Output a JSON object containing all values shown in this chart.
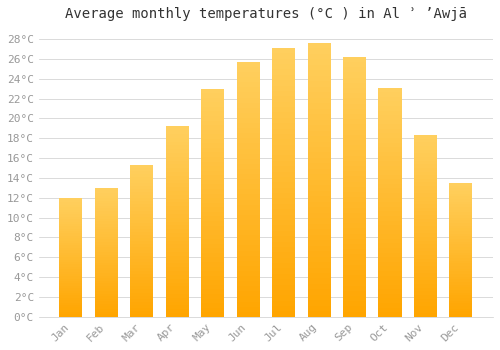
{
  "title": "Average monthly temperatures (°C ) in Al ʾ ʼAwjā",
  "months": [
    "Jan",
    "Feb",
    "Mar",
    "Apr",
    "May",
    "Jun",
    "Jul",
    "Aug",
    "Sep",
    "Oct",
    "Nov",
    "Dec"
  ],
  "values": [
    12.0,
    13.0,
    15.3,
    19.2,
    23.0,
    25.7,
    27.1,
    27.6,
    26.2,
    23.1,
    18.3,
    13.5
  ],
  "bar_color_top": "#FFB300",
  "bar_color_bottom": "#FFA500",
  "background_color": "#FFFFFF",
  "plot_bg_color": "#FFFFFF",
  "grid_color": "#CCCCCC",
  "text_color": "#999999",
  "ylim": [
    0,
    29
  ],
  "ytick_step": 2,
  "title_fontsize": 10,
  "tick_fontsize": 8
}
